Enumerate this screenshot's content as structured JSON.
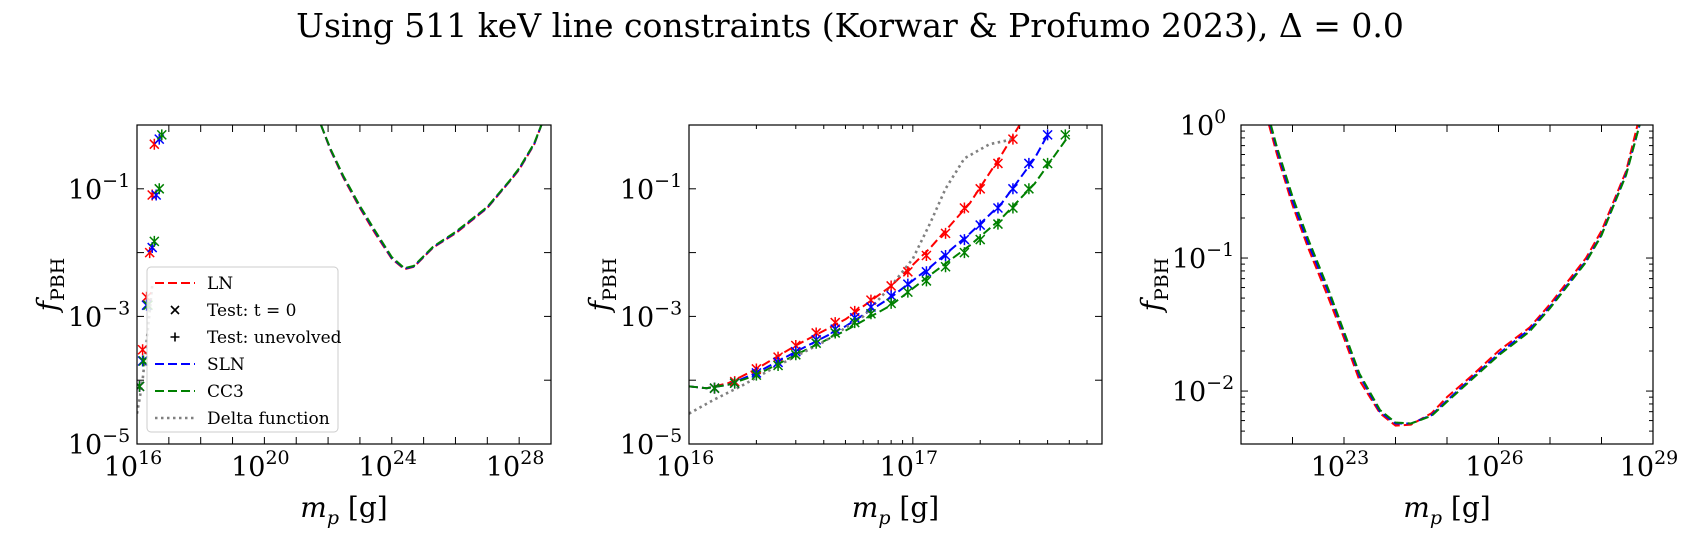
{
  "title": "Using 511 keV line constraints (Korwar & Profumo 2023), Δ = 0.0",
  "colors": {
    "LN": "#ff0000",
    "SLN": "#0000ff",
    "CC3": "#008000",
    "delta": "#808080"
  },
  "chart_data": [
    {
      "type": "line",
      "xlabel": "m_p [g]",
      "ylabel": "f_PBH",
      "xscale": "log",
      "yscale": "log",
      "xlim": [
        1e+16,
        1e+29
      ],
      "ylim": [
        1e-05,
        1
      ],
      "xticks": [
        {
          "v": 1e+16,
          "b": "10",
          "e": "16"
        },
        {
          "v": 1e+20,
          "b": "10",
          "e": "20"
        },
        {
          "v": 1e+24,
          "b": "10",
          "e": "24"
        },
        {
          "v": 1e+28,
          "b": "10",
          "e": "28"
        }
      ],
      "yticks": [
        {
          "v": 1e-05,
          "b": "10",
          "e": "−5"
        },
        {
          "v": 0.001,
          "b": "10",
          "e": "−3"
        },
        {
          "v": 0.1,
          "b": "10",
          "e": "−1"
        }
      ],
      "legend": {
        "placement": "lower-left",
        "entries": [
          {
            "label": "LN",
            "key": "LN",
            "style": "dash"
          },
          {
            "label": "Test: t = 0",
            "key": "black",
            "style": "x"
          },
          {
            "label": "Test: unevolved",
            "key": "black",
            "style": "plus"
          },
          {
            "label": "SLN",
            "key": "SLN",
            "style": "dash"
          },
          {
            "label": "CC3",
            "key": "CC3",
            "style": "dash"
          },
          {
            "label": "Delta function",
            "key": "delta",
            "style": "dot"
          }
        ]
      },
      "series": [
        {
          "name": "LN",
          "color": "LN",
          "style": "dash",
          "x": [
            6e+21,
            1.2e+22,
            3e+22,
            1e+23,
            3e+23,
            1e+24,
            2.5e+24,
            5e+24,
            2e+25,
            1e+26,
            1e+27,
            5e+27,
            1e+28,
            3e+28,
            5e+28
          ],
          "y": [
            1,
            0.4,
            0.15,
            0.05,
            0.02,
            0.008,
            0.0055,
            0.006,
            0.012,
            0.02,
            0.05,
            0.13,
            0.2,
            0.5,
            1
          ]
        },
        {
          "name": "SLN",
          "color": "SLN",
          "style": "dash",
          "x": [
            6e+21,
            1.2e+22,
            3e+22,
            1e+23,
            3e+23,
            1e+24,
            2.5e+24,
            5e+24,
            2e+25,
            1e+26,
            1e+27,
            5e+27,
            1e+28,
            3e+28,
            5e+28
          ],
          "y": [
            1,
            0.41,
            0.155,
            0.052,
            0.021,
            0.0082,
            0.0056,
            0.0061,
            0.0122,
            0.0205,
            0.051,
            0.132,
            0.205,
            0.51,
            1
          ]
        },
        {
          "name": "CC3",
          "color": "CC3",
          "style": "dash",
          "x": [
            6e+21,
            1.2e+22,
            3e+22,
            1e+23,
            3e+23,
            1e+24,
            2.5e+24,
            5e+24,
            2e+25,
            1e+26,
            1e+27,
            5e+27,
            1e+28,
            3e+28,
            5e+28
          ],
          "y": [
            1,
            0.42,
            0.16,
            0.054,
            0.022,
            0.0085,
            0.0057,
            0.0062,
            0.0124,
            0.021,
            0.052,
            0.134,
            0.21,
            0.52,
            1
          ]
        },
        {
          "name": "Delta function",
          "color": "delta",
          "style": "dot",
          "x": [
            1e+16,
            1.2e+16,
            1.5e+16,
            2e+16,
            3e+16
          ],
          "y": [
            3e-05,
            5e-05,
            0.0001,
            0.0004,
            0.003
          ]
        }
      ],
      "markers": [
        {
          "color": "LN",
          "x": [
            1.2e+16,
            1.5e+16,
            2e+16,
            2.5e+16,
            3e+16,
            3.5e+16
          ],
          "y": [
            8e-05,
            0.0003,
            0.002,
            0.01,
            0.08,
            0.5
          ]
        },
        {
          "color": "SLN",
          "x": [
            1.2e+16,
            1.5e+16,
            2e+16,
            3e+16,
            4e+16,
            5e+16
          ],
          "y": [
            8e-05,
            0.0002,
            0.0015,
            0.012,
            0.08,
            0.6
          ]
        },
        {
          "color": "CC3",
          "x": [
            1.2e+16,
            1.6e+16,
            2.2e+16,
            3.5e+16,
            5e+16,
            6e+16
          ],
          "y": [
            8e-05,
            0.0002,
            0.0015,
            0.015,
            0.1,
            0.7
          ]
        }
      ]
    },
    {
      "type": "line",
      "xlabel": "m_p [g]",
      "ylabel": "f_PBH",
      "xscale": "log",
      "yscale": "log",
      "xlim": [
        1e+16,
        7e+17
      ],
      "ylim": [
        1e-05,
        1
      ],
      "xticks": [
        {
          "v": 1e+16,
          "b": "10",
          "e": "16"
        },
        {
          "v": 1e+17,
          "b": "10",
          "e": "17"
        }
      ],
      "yticks": [
        {
          "v": 1e-05,
          "b": "10",
          "e": "−5"
        },
        {
          "v": 0.001,
          "b": "10",
          "e": "−3"
        },
        {
          "v": 0.1,
          "b": "10",
          "e": "−1"
        }
      ],
      "series": [
        {
          "name": "LN",
          "color": "LN",
          "style": "dash",
          "x": [
            1e+16,
            1.2e+16,
            1.5e+16,
            2e+16,
            3e+16,
            5e+16,
            8e+16,
            1.2e+17,
            1.8e+17,
            2.5e+17,
            3e+17
          ],
          "y": [
            8e-05,
            7.5e-05,
            9e-05,
            0.00015,
            0.00035,
            0.0009,
            0.003,
            0.012,
            0.06,
            0.35,
            1
          ]
        },
        {
          "name": "SLN",
          "color": "SLN",
          "style": "dash",
          "x": [
            1e+16,
            1.2e+16,
            1.5e+16,
            2e+16,
            3e+16,
            5e+16,
            8e+16,
            1.2e+17,
            1.8e+17,
            2.5e+17,
            3.5e+17,
            4e+17
          ],
          "y": [
            8e-05,
            7.5e-05,
            8.5e-05,
            0.00013,
            0.00028,
            0.0007,
            0.002,
            0.006,
            0.02,
            0.06,
            0.3,
            0.7
          ]
        },
        {
          "name": "CC3",
          "color": "CC3",
          "style": "dash",
          "x": [
            1e+16,
            1.2e+16,
            1.5e+16,
            2e+16,
            3e+16,
            5e+16,
            8e+16,
            1.2e+17,
            1.8e+17,
            2.5e+17,
            3.5e+17,
            5e+17
          ],
          "y": [
            8e-05,
            7.5e-05,
            8.5e-05,
            0.00012,
            0.00025,
            0.0006,
            0.0015,
            0.0045,
            0.013,
            0.035,
            0.12,
            0.7
          ]
        },
        {
          "name": "Delta function",
          "color": "delta",
          "style": "dot",
          "x": [
            1e+16,
            1.3e+16,
            1.7e+16,
            2.5e+16,
            4e+16,
            6e+16,
            8e+16,
            1e+17,
            1.2e+17,
            1.4e+17,
            1.7e+17,
            2.2e+17,
            2.8e+17
          ],
          "y": [
            3e-05,
            5e-05,
            8e-05,
            0.00017,
            0.0004,
            0.001,
            0.003,
            0.008,
            0.03,
            0.1,
            0.3,
            0.5,
            0.6
          ]
        }
      ],
      "markers": [
        {
          "color": "LN",
          "x": [
            1.3e+16,
            1.6e+16,
            2e+16,
            2.5e+16,
            3e+16,
            3.7e+16,
            4.5e+16,
            5.5e+16,
            6.5e+16,
            8e+16,
            9.5e+16,
            1.15e+17,
            1.4e+17,
            1.7e+17,
            2e+17,
            2.4e+17,
            2.8e+17
          ],
          "y": [
            7.5e-05,
            9.5e-05,
            0.00015,
            0.00023,
            0.00035,
            0.00055,
            0.0008,
            0.0012,
            0.0018,
            0.003,
            0.005,
            0.009,
            0.02,
            0.05,
            0.1,
            0.25,
            0.6
          ]
        },
        {
          "color": "SLN",
          "x": [
            1.3e+16,
            1.6e+16,
            2e+16,
            2.5e+16,
            3e+16,
            3.7e+16,
            4.5e+16,
            5.5e+16,
            6.5e+16,
            8e+16,
            9.5e+16,
            1.15e+17,
            1.4e+17,
            1.7e+17,
            2e+17,
            2.4e+17,
            2.8e+17,
            3.3e+17,
            4e+17
          ],
          "y": [
            7.5e-05,
            9e-05,
            0.00013,
            0.00019,
            0.00028,
            0.00043,
            0.00063,
            0.00095,
            0.0014,
            0.0021,
            0.0032,
            0.005,
            0.009,
            0.016,
            0.027,
            0.05,
            0.1,
            0.25,
            0.7
          ]
        },
        {
          "color": "CC3",
          "x": [
            1.3e+16,
            1.6e+16,
            2e+16,
            2.5e+16,
            3e+16,
            3.7e+16,
            4.5e+16,
            5.5e+16,
            6.5e+16,
            8e+16,
            9.5e+16,
            1.15e+17,
            1.4e+17,
            1.7e+17,
            2e+17,
            2.4e+17,
            2.8e+17,
            3.3e+17,
            4e+17,
            4.8e+17
          ],
          "y": [
            7.5e-05,
            9e-05,
            0.00012,
            0.00017,
            0.00025,
            0.00038,
            0.00055,
            0.0008,
            0.0011,
            0.0016,
            0.0024,
            0.0036,
            0.006,
            0.01,
            0.016,
            0.028,
            0.05,
            0.1,
            0.25,
            0.7
          ]
        }
      ]
    },
    {
      "type": "line",
      "xlabel": "m_p [g]",
      "ylabel": "f_PBH",
      "xscale": "log",
      "yscale": "log",
      "xlim": [
        1e+21,
        1e+29
      ],
      "ylim": [
        0.004,
        1
      ],
      "xticks": [
        {
          "v": 1e+23,
          "b": "10",
          "e": "23"
        },
        {
          "v": 1e+26,
          "b": "10",
          "e": "26"
        },
        {
          "v": 1e+29,
          "b": "10",
          "e": "29"
        }
      ],
      "yticks": [
        {
          "v": 0.01,
          "b": "10",
          "e": "−2"
        },
        {
          "v": 0.1,
          "b": "10",
          "e": "−1"
        },
        {
          "v": 1,
          "b": "10",
          "e": "0"
        }
      ],
      "series": [
        {
          "name": "LN",
          "color": "LN",
          "style": "dash",
          "x": [
            3.5e+21,
            5e+21,
            1e+22,
            2e+22,
            5e+22,
            1e+23,
            2e+23,
            5e+23,
            1e+24,
            2e+24,
            5e+24,
            1e+25,
            3e+25,
            1e+26,
            4e+26,
            1e+27,
            5e+27,
            1e+28,
            3e+28,
            5e+28
          ],
          "y": [
            1,
            0.6,
            0.25,
            0.12,
            0.05,
            0.025,
            0.012,
            0.0068,
            0.0055,
            0.0056,
            0.0068,
            0.009,
            0.013,
            0.02,
            0.03,
            0.045,
            0.1,
            0.16,
            0.45,
            1
          ]
        },
        {
          "name": "SLN",
          "color": "SLN",
          "style": "dash",
          "x": [
            3.7e+21,
            5e+21,
            1e+22,
            2e+22,
            5e+22,
            1e+23,
            2e+23,
            5e+23,
            1e+24,
            2e+24,
            5e+24,
            1e+25,
            3e+25,
            1e+26,
            4e+26,
            1e+27,
            5e+27,
            1e+28,
            3e+28,
            5.5e+28
          ],
          "y": [
            1,
            0.65,
            0.27,
            0.13,
            0.055,
            0.027,
            0.013,
            0.007,
            0.0057,
            0.0057,
            0.0066,
            0.0085,
            0.0125,
            0.019,
            0.029,
            0.043,
            0.095,
            0.15,
            0.43,
            1
          ]
        },
        {
          "name": "CC3",
          "color": "CC3",
          "style": "dash",
          "x": [
            3.8e+21,
            5e+21,
            1e+22,
            2e+22,
            5e+22,
            1e+23,
            2e+23,
            5e+23,
            1e+24,
            2e+24,
            5e+24,
            1e+25,
            3e+25,
            1e+26,
            4e+26,
            1e+27,
            5e+27,
            1e+28,
            3e+28,
            5.5e+28
          ],
          "y": [
            1,
            0.68,
            0.29,
            0.14,
            0.058,
            0.028,
            0.0135,
            0.0072,
            0.0058,
            0.0057,
            0.0065,
            0.0083,
            0.0122,
            0.0185,
            0.028,
            0.042,
            0.093,
            0.148,
            0.42,
            1
          ]
        }
      ],
      "markers": []
    }
  ]
}
